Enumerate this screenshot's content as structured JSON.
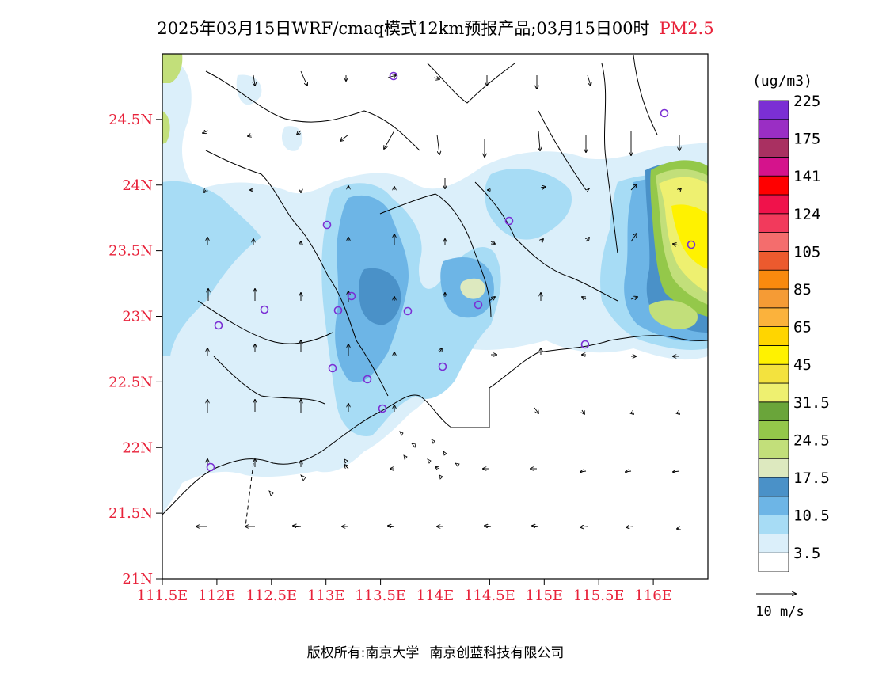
{
  "title": {
    "main": "2025年03月15日WRF/cmaq模式12km预报产品;03月15日00时",
    "pollutant": "PM2.5"
  },
  "axes": {
    "lat_labels": [
      "24.5N",
      "24N",
      "23.5N",
      "23N",
      "22.5N",
      "22N",
      "21.5N",
      "21N"
    ],
    "lat_values": [
      24.5,
      24.0,
      23.5,
      23.0,
      22.5,
      22.0,
      21.5,
      21.0
    ],
    "lon_labels": [
      "111.5E",
      "112E",
      "112.5E",
      "113E",
      "113.5E",
      "114E",
      "114.5E",
      "115E",
      "115.5E",
      "116E"
    ],
    "lon_values": [
      111.5,
      112.0,
      112.5,
      113.0,
      113.5,
      114.0,
      114.5,
      115.0,
      115.5,
      116.0
    ],
    "lon_range": [
      111.5,
      116.5
    ],
    "lat_range": [
      21.0,
      25.0
    ],
    "label_color": "#e8223a"
  },
  "legend": {
    "unit": "(ug/m3)",
    "labels": [
      "3.5",
      "10.5",
      "17.5",
      "24.5",
      "31.5",
      "45",
      "65",
      "85",
      "105",
      "124",
      "141",
      "175",
      "225"
    ],
    "colors": [
      "#ffffff",
      "#dbeffa",
      "#a7dcf5",
      "#6db5e6",
      "#4a91c8",
      "#dde9bf",
      "#c2df7a",
      "#94c84a",
      "#6aa53a",
      "#eef070",
      "#f3e23e",
      "#fff200",
      "#ffd500",
      "#fbb23c",
      "#f59b35",
      "#f98a0e",
      "#ec5a2e",
      "#f46d6d",
      "#f23a5c",
      "#f0124b",
      "#ff0000",
      "#d5138c",
      "#a93061",
      "#9a2ec4",
      "#7b2fd4"
    ],
    "wind_label": "10 m/s"
  },
  "footer": {
    "owner_left": "版权所有:南京大学",
    "owner_right": "南京创蓝科技有限公司"
  }
}
